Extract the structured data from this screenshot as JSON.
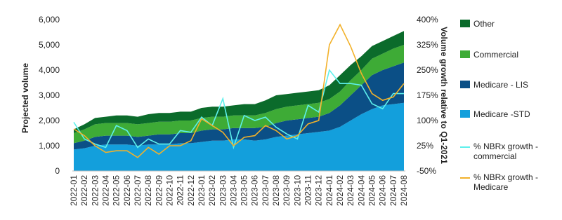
{
  "chart_data": {
    "type": "area",
    "y_label": "Projected volume",
    "y2_label": "Volume growth relative to Q1-2021",
    "categories": [
      "2022-01",
      "2022-02",
      "2022-03",
      "2022-04",
      "2022-05",
      "2022-06",
      "2022-07",
      "2022-08",
      "2022-09",
      "2022-10",
      "2022-11",
      "2022-12",
      "2023-01",
      "2023-02",
      "2023-03",
      "2023-04",
      "2023-05",
      "2023-06",
      "2023-07",
      "2023-08",
      "2023-09",
      "2023-10",
      "2023-11",
      "2023-12",
      "2024-01",
      "2024-02",
      "2024-03",
      "2024-04",
      "2024-05",
      "2024-06",
      "2024-07",
      "2024-08"
    ],
    "ylim": [
      0,
      6000
    ],
    "yticks": [
      0,
      {
        "value": 1000,
        "label": "1,000"
      },
      {
        "value": 2000,
        "label": "2,000"
      },
      {
        "value": 3000,
        "label": "3,000"
      },
      {
        "value": 4000,
        "label": "4,000"
      },
      {
        "value": 5000,
        "label": "5,000"
      },
      {
        "value": 6000,
        "label": "6,000"
      }
    ],
    "y2lim": [
      -50,
      400
    ],
    "y2ticks": [
      {
        "value": -50,
        "label": "-50%"
      },
      {
        "value": 25,
        "label": "25%"
      },
      {
        "value": 100,
        "label": "100%"
      },
      {
        "value": 175,
        "label": "175%"
      },
      {
        "value": 250,
        "label": "250%"
      },
      {
        "value": 325,
        "label": "325%"
      },
      {
        "value": 400,
        "label": "400%"
      }
    ],
    "series": [
      {
        "name": "Medicare -STD",
        "color": "#139fdc",
        "values": [
          850,
          900,
          1000,
          1050,
          1050,
          1050,
          1000,
          1050,
          1050,
          1050,
          1100,
          1100,
          1150,
          1200,
          1200,
          1250,
          1250,
          1200,
          1250,
          1350,
          1400,
          1450,
          1500,
          1550,
          1600,
          1750,
          2000,
          2250,
          2450,
          2600,
          2650,
          2700
        ]
      },
      {
        "name": "Medicare  - LIS",
        "color": "#0b4f86",
        "values": [
          250,
          300,
          350,
          350,
          350,
          350,
          350,
          350,
          400,
          400,
          400,
          400,
          450,
          450,
          450,
          450,
          450,
          500,
          500,
          550,
          600,
          600,
          600,
          600,
          700,
          850,
          1000,
          1150,
          1350,
          1400,
          1500,
          1600
        ]
      },
      {
        "name": "Commercial",
        "color": "#3eab36",
        "values": [
          400,
          450,
          500,
          500,
          500,
          500,
          500,
          500,
          500,
          500,
          500,
          500,
          500,
          500,
          500,
          500,
          500,
          500,
          550,
          550,
          550,
          550,
          550,
          550,
          550,
          550,
          600,
          600,
          650,
          650,
          700,
          700
        ]
      },
      {
        "name": "Other",
        "color": "#0b6b2b",
        "values": [
          150,
          200,
          250,
          250,
          300,
          300,
          300,
          350,
          350,
          350,
          350,
          350,
          400,
          400,
          400,
          400,
          450,
          450,
          500,
          550,
          500,
          500,
          500,
          500,
          550,
          650,
          600,
          550,
          500,
          500,
          500,
          550
        ]
      },
      {
        "name": "% NBRx growth - commercial",
        "color": "#5ef0ec",
        "type": "line",
        "axis": "y2",
        "values": [
          95,
          45,
          30,
          20,
          85,
          70,
          20,
          45,
          30,
          30,
          70,
          65,
          110,
          85,
          165,
          20,
          115,
          100,
          110,
          80,
          60,
          45,
          145,
          125,
          250,
          210,
          210,
          205,
          150,
          135,
          180,
          180
        ]
      },
      {
        "name": "% NBRx growth - Medicare",
        "color": "#f2b12a",
        "type": "line",
        "axis": "y2",
        "values": [
          75,
          55,
          25,
          5,
          10,
          10,
          -10,
          20,
          0,
          25,
          25,
          40,
          105,
          85,
          65,
          25,
          50,
          55,
          85,
          70,
          45,
          55,
          90,
          100,
          325,
          385,
          320,
          240,
          180,
          160,
          170,
          210
        ]
      }
    ]
  }
}
